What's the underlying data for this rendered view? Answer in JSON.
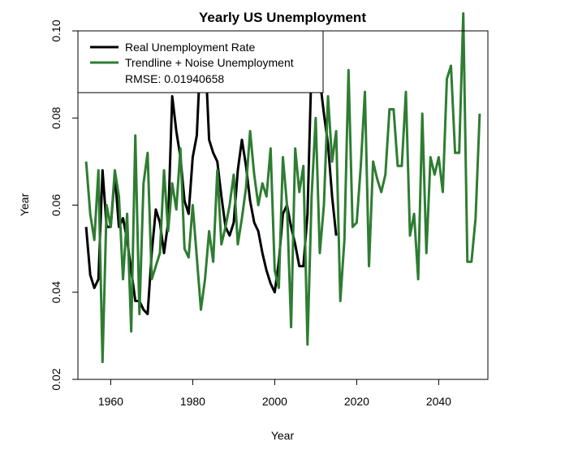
{
  "chart_data": {
    "type": "line",
    "title": "Yearly US Unemployment",
    "xlabel": "Year",
    "ylabel": "Year",
    "xlim": [
      1952,
      2052
    ],
    "ylim": [
      0.02,
      0.1
    ],
    "x_ticks": [
      1960,
      1980,
      2000,
      2020,
      2040
    ],
    "y_ticks": [
      0.02,
      0.04,
      0.06,
      0.08,
      0.1
    ],
    "x_tick_labels": [
      "1960",
      "1980",
      "2000",
      "2020",
      "2040"
    ],
    "y_tick_labels": [
      "0.02",
      "0.04",
      "0.06",
      "0.08",
      "0.10"
    ],
    "grid": false,
    "legend": {
      "position": "top-left",
      "entries": [
        "Real Unemployment Rate",
        "Trendline + Noise Unemployment"
      ],
      "note": "RMSE: 0.01940658"
    },
    "series": [
      {
        "name": "Real Unemployment Rate",
        "color": "#000000",
        "x": [
          1954,
          1955,
          1956,
          1957,
          1958,
          1959,
          1960,
          1961,
          1962,
          1963,
          1964,
          1965,
          1966,
          1967,
          1968,
          1969,
          1970,
          1971,
          1972,
          1973,
          1974,
          1975,
          1976,
          1977,
          1978,
          1979,
          1980,
          1981,
          1982,
          1983,
          1984,
          1985,
          1986,
          1987,
          1988,
          1989,
          1990,
          1991,
          1992,
          1993,
          1994,
          1995,
          1996,
          1997,
          1998,
          1999,
          2000,
          2001,
          2002,
          2003,
          2004,
          2005,
          2006,
          2007,
          2008,
          2009,
          2010,
          2011,
          2012,
          2013,
          2014,
          2015
        ],
        "y": [
          0.055,
          0.044,
          0.041,
          0.043,
          0.068,
          0.055,
          0.055,
          0.067,
          0.055,
          0.057,
          0.052,
          0.045,
          0.038,
          0.038,
          0.036,
          0.035,
          0.049,
          0.059,
          0.056,
          0.049,
          0.056,
          0.085,
          0.077,
          0.071,
          0.061,
          0.058,
          0.071,
          0.076,
          0.097,
          0.096,
          0.075,
          0.072,
          0.07,
          0.062,
          0.055,
          0.053,
          0.056,
          0.068,
          0.075,
          0.069,
          0.061,
          0.056,
          0.054,
          0.049,
          0.045,
          0.042,
          0.04,
          0.047,
          0.058,
          0.06,
          0.055,
          0.051,
          0.046,
          0.046,
          0.058,
          0.093,
          0.096,
          0.089,
          0.081,
          0.074,
          0.062,
          0.053
        ]
      },
      {
        "name": "Trendline + Noise Unemployment",
        "color": "#2e7d32",
        "x": [
          1954,
          1955,
          1956,
          1957,
          1958,
          1959,
          1960,
          1961,
          1962,
          1963,
          1964,
          1965,
          1966,
          1967,
          1968,
          1969,
          1970,
          1971,
          1972,
          1973,
          1974,
          1975,
          1976,
          1977,
          1978,
          1979,
          1980,
          1981,
          1982,
          1983,
          1984,
          1985,
          1986,
          1987,
          1988,
          1989,
          1990,
          1991,
          1992,
          1993,
          1994,
          1995,
          1996,
          1997,
          1998,
          1999,
          2000,
          2001,
          2002,
          2003,
          2004,
          2005,
          2006,
          2007,
          2008,
          2009,
          2010,
          2011,
          2012,
          2013,
          2014,
          2015,
          2016,
          2017,
          2018,
          2019,
          2020,
          2021,
          2022,
          2023,
          2024,
          2025,
          2026,
          2027,
          2028,
          2029,
          2030,
          2031,
          2032,
          2033,
          2034,
          2035,
          2036,
          2037,
          2038,
          2039,
          2040,
          2041,
          2042,
          2043,
          2044,
          2045,
          2046,
          2047,
          2048,
          2049,
          2050
        ],
        "y": [
          0.07,
          0.058,
          0.052,
          0.068,
          0.024,
          0.06,
          0.055,
          0.068,
          0.062,
          0.043,
          0.058,
          0.031,
          0.076,
          0.035,
          0.065,
          0.072,
          0.043,
          0.046,
          0.049,
          0.068,
          0.054,
          0.065,
          0.059,
          0.073,
          0.05,
          0.048,
          0.06,
          0.048,
          0.036,
          0.043,
          0.054,
          0.047,
          0.068,
          0.051,
          0.055,
          0.06,
          0.067,
          0.051,
          0.057,
          0.064,
          0.077,
          0.067,
          0.06,
          0.065,
          0.062,
          0.073,
          0.045,
          0.041,
          0.071,
          0.06,
          0.032,
          0.073,
          0.063,
          0.069,
          0.028,
          0.062,
          0.08,
          0.049,
          0.06,
          0.085,
          0.07,
          0.077,
          0.038,
          0.052,
          0.091,
          0.055,
          0.056,
          0.069,
          0.086,
          0.046,
          0.07,
          0.066,
          0.063,
          0.067,
          0.082,
          0.082,
          0.069,
          0.069,
          0.086,
          0.053,
          0.058,
          0.043,
          0.081,
          0.049,
          0.071,
          0.067,
          0.071,
          0.063,
          0.089,
          0.092,
          0.072,
          0.072,
          0.104,
          0.047,
          0.047,
          0.057,
          0.081
        ]
      }
    ]
  }
}
